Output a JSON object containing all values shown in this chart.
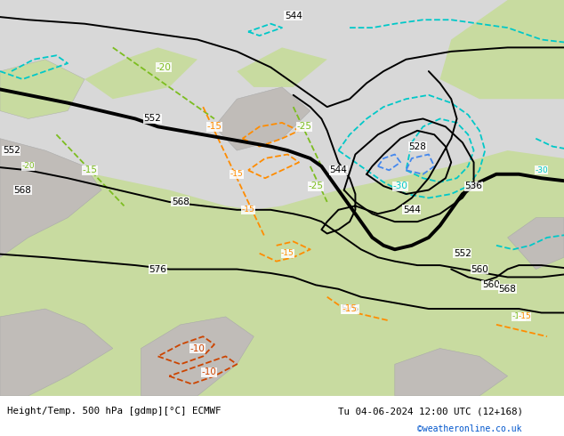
{
  "title_left": "Height/Temp. 500 hPa [gdmp][°C] ECMWF",
  "title_right": "Tu 04-06-2024 12:00 UTC (12+168)",
  "credit": "©weatheronline.co.uk",
  "bg_color": "#d8d8d8",
  "map_green": "#c8dba0",
  "land_gray": "#c0bcb8",
  "bottom_bar_color": "#ffffff",
  "z500_color": "#000000",
  "temp_orange": "#ff8c00",
  "temp_orange2": "#cc4400",
  "temp_green": "#7cbd20",
  "z850_cyan": "#00c8c8",
  "z850_blue": "#4488ee",
  "contour_lw": 1.4,
  "bold_lw": 2.8,
  "dashed_lw": 1.3,
  "fig_width": 6.34,
  "fig_height": 4.9,
  "dpi": 100
}
